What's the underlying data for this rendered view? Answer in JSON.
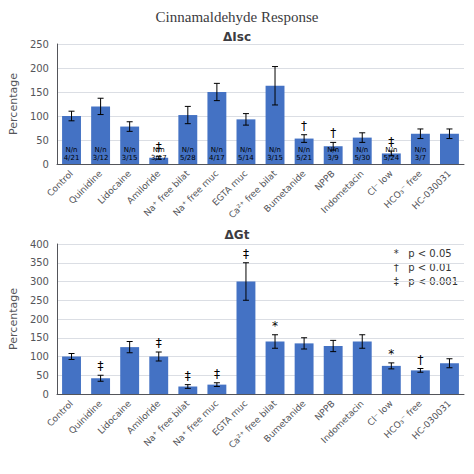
{
  "title": "Cinnamaldehyde Response",
  "annotations": [
    "*   p < 0.05",
    "†   p < 0.01",
    "‡   p < 0.001"
  ],
  "chart_data": [
    {
      "type": "bar",
      "title": "ΔIsc",
      "ylabel": "Percentage",
      "color": "#4472C4",
      "categories": [
        "Control",
        "Quinidine",
        "Lidocaine",
        "Amiloride",
        "Na⁺ free bilat",
        "Na⁺ free muc",
        "EGTA muc",
        "Ca²⁺ free bilat",
        "Bumetanide",
        "NPPB",
        "Indometacin",
        "Cl⁻ low",
        "HCO₃⁻ free",
        "HC-030031"
      ],
      "values": [
        100,
        120,
        78,
        13,
        102,
        150,
        93,
        163,
        53,
        37,
        55,
        22,
        63,
        63
      ],
      "errors": [
        10,
        17,
        10,
        3,
        18,
        18,
        12,
        40,
        8,
        8,
        10,
        5,
        10,
        10
      ],
      "labels": [
        "N/n\n4/21",
        "N/n\n3/12",
        "N/n\n3/15",
        "N/n\n3/17",
        "N/n\n5/28",
        "N/n\n4/17",
        "N/n\n5/14",
        "N/n\n3/15",
        "N/n\n5/21",
        "N/n\n3/9",
        "N/n\n5/30",
        "N/n\n5/24",
        "N/n\n3/7",
        null
      ],
      "annotations": [
        {
          "category": "Amiloride",
          "text": "‡"
        },
        {
          "category": "Bumetanide",
          "text": "†"
        },
        {
          "category": "NPPB",
          "text": "†"
        },
        {
          "category": "Cl⁻ low",
          "text": "‡"
        }
      ],
      "ylim": [
        0,
        250
      ],
      "yticks": [
        0,
        50,
        100,
        150,
        200,
        250
      ],
      "grid": true
    },
    {
      "type": "bar",
      "title": "ΔGt",
      "ylabel": "Percentage",
      "color": "#4472C4",
      "categories": [
        "Control",
        "Quinidine",
        "Lidocaine",
        "Amiloride",
        "Na⁺ free bilat",
        "Na⁺ free muc",
        "EGTA muc",
        "Ca²⁺ free bilat",
        "Bumetanide",
        "NPPB",
        "Indometacin",
        "Cl⁻ low",
        "HCO₃⁻ free",
        "HC-030031"
      ],
      "values": [
        100,
        42,
        125,
        100,
        20,
        25,
        300,
        140,
        135,
        128,
        140,
        75,
        63,
        82
      ],
      "errors": [
        8,
        8,
        15,
        12,
        5,
        5,
        50,
        18,
        15,
        15,
        18,
        8,
        5,
        12
      ],
      "annotations": [
        {
          "category": "Quinidine",
          "text": "‡"
        },
        {
          "category": "Amiloride",
          "text": "‡"
        },
        {
          "category": "Na⁺ free bilat",
          "text": "‡"
        },
        {
          "category": "Na⁺ free muc",
          "text": "‡"
        },
        {
          "category": "EGTA muc",
          "text": "‡"
        },
        {
          "category": "Ca²⁺ free bilat",
          "text": "*"
        },
        {
          "category": "Cl⁻ low",
          "text": "*"
        },
        {
          "category": "HCO₃⁻ free",
          "text": "†"
        }
      ],
      "ylim": [
        0,
        400
      ],
      "yticks": [
        0,
        50,
        100,
        150,
        200,
        250,
        300,
        350,
        400
      ],
      "grid": true
    }
  ]
}
